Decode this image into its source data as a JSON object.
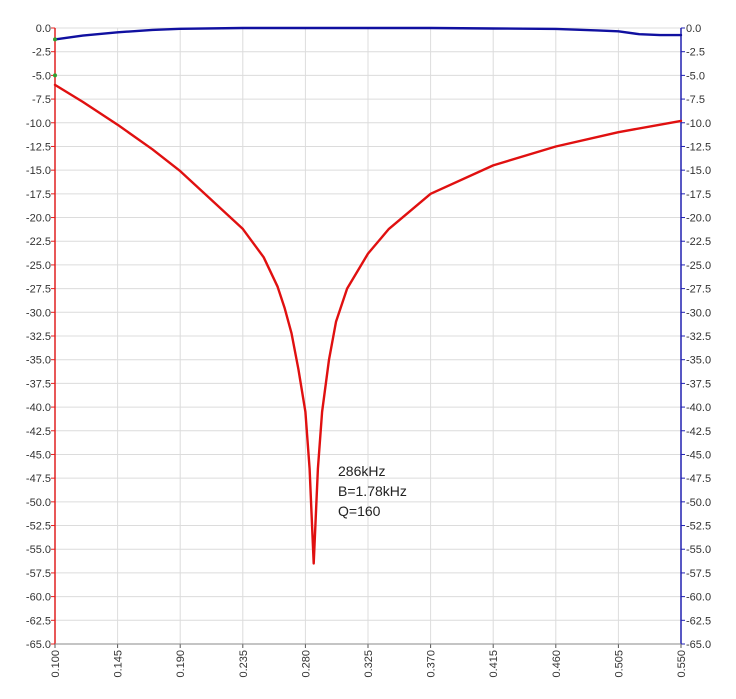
{
  "chart_data": {
    "type": "line",
    "grid": true,
    "xlim": [
      0.1,
      0.55
    ],
    "ylim": [
      -65.0,
      0.0
    ],
    "y2lim": [
      -65.0,
      0.0
    ],
    "xticks": [
      "0.100",
      "0.145",
      "0.190",
      "0.235",
      "0.280",
      "0.325",
      "0.370",
      "0.415",
      "0.460",
      "0.505",
      "0.550"
    ],
    "yticks": [
      "0.0",
      "-2.5",
      "-5.0",
      "-7.5",
      "-10.0",
      "-12.5",
      "-15.0",
      "-17.5",
      "-20.0",
      "-22.5",
      "-25.0",
      "-27.5",
      "-30.0",
      "-32.5",
      "-35.0",
      "-37.5",
      "-40.0",
      "-42.5",
      "-45.0",
      "-47.5",
      "-50.0",
      "-52.5",
      "-55.0",
      "-57.5",
      "-60.0",
      "-62.5",
      "-65.0"
    ],
    "y2ticks": [
      "0.0",
      "-2.5",
      "-5.0",
      "-7.5",
      "-10.0",
      "-12.5",
      "-15.0",
      "-17.5",
      "-20.0",
      "-22.5",
      "-25.0",
      "-27.5",
      "-30.0",
      "-32.5",
      "-35.0",
      "-37.5",
      "-40.0",
      "-42.5",
      "-45.0",
      "-47.5",
      "-50.0",
      "-52.5",
      "-55.0",
      "-57.5",
      "-60.0",
      "-62.5",
      "-65.0"
    ],
    "left_axis_color": "#e02020",
    "right_axis_color": "#2020b0",
    "series": [
      {
        "color": "#e01010",
        "axis": "left",
        "x": [
          0.1,
          0.12,
          0.145,
          0.17,
          0.19,
          0.21,
          0.235,
          0.25,
          0.26,
          0.265,
          0.27,
          0.275,
          0.28,
          0.283,
          0.286,
          0.289,
          0.292,
          0.297,
          0.302,
          0.31,
          0.325,
          0.34,
          0.37,
          0.415,
          0.46,
          0.505,
          0.55
        ],
        "y": [
          -6.0,
          -7.8,
          -10.2,
          -12.8,
          -15.1,
          -17.8,
          -21.2,
          -24.2,
          -27.3,
          -29.5,
          -32.2,
          -36.0,
          -40.5,
          -46.5,
          -56.5,
          -46.5,
          -40.5,
          -35.0,
          -31.0,
          -27.5,
          -23.8,
          -21.2,
          -17.5,
          -14.5,
          -12.5,
          -11.0,
          -9.8
        ]
      },
      {
        "color": "#1010a0",
        "axis": "right",
        "x": [
          0.1,
          0.12,
          0.145,
          0.17,
          0.19,
          0.235,
          0.28,
          0.325,
          0.37,
          0.415,
          0.46,
          0.49,
          0.505,
          0.52,
          0.535,
          0.55
        ],
        "y": [
          -1.2,
          -0.8,
          -0.45,
          -0.2,
          -0.08,
          0.0,
          0.0,
          0.0,
          0.0,
          -0.05,
          -0.1,
          -0.25,
          -0.35,
          -0.65,
          -0.75,
          -0.75
        ]
      }
    ],
    "annotations": [
      "286kHz",
      "B=1.78kHz",
      "Q=160"
    ]
  }
}
